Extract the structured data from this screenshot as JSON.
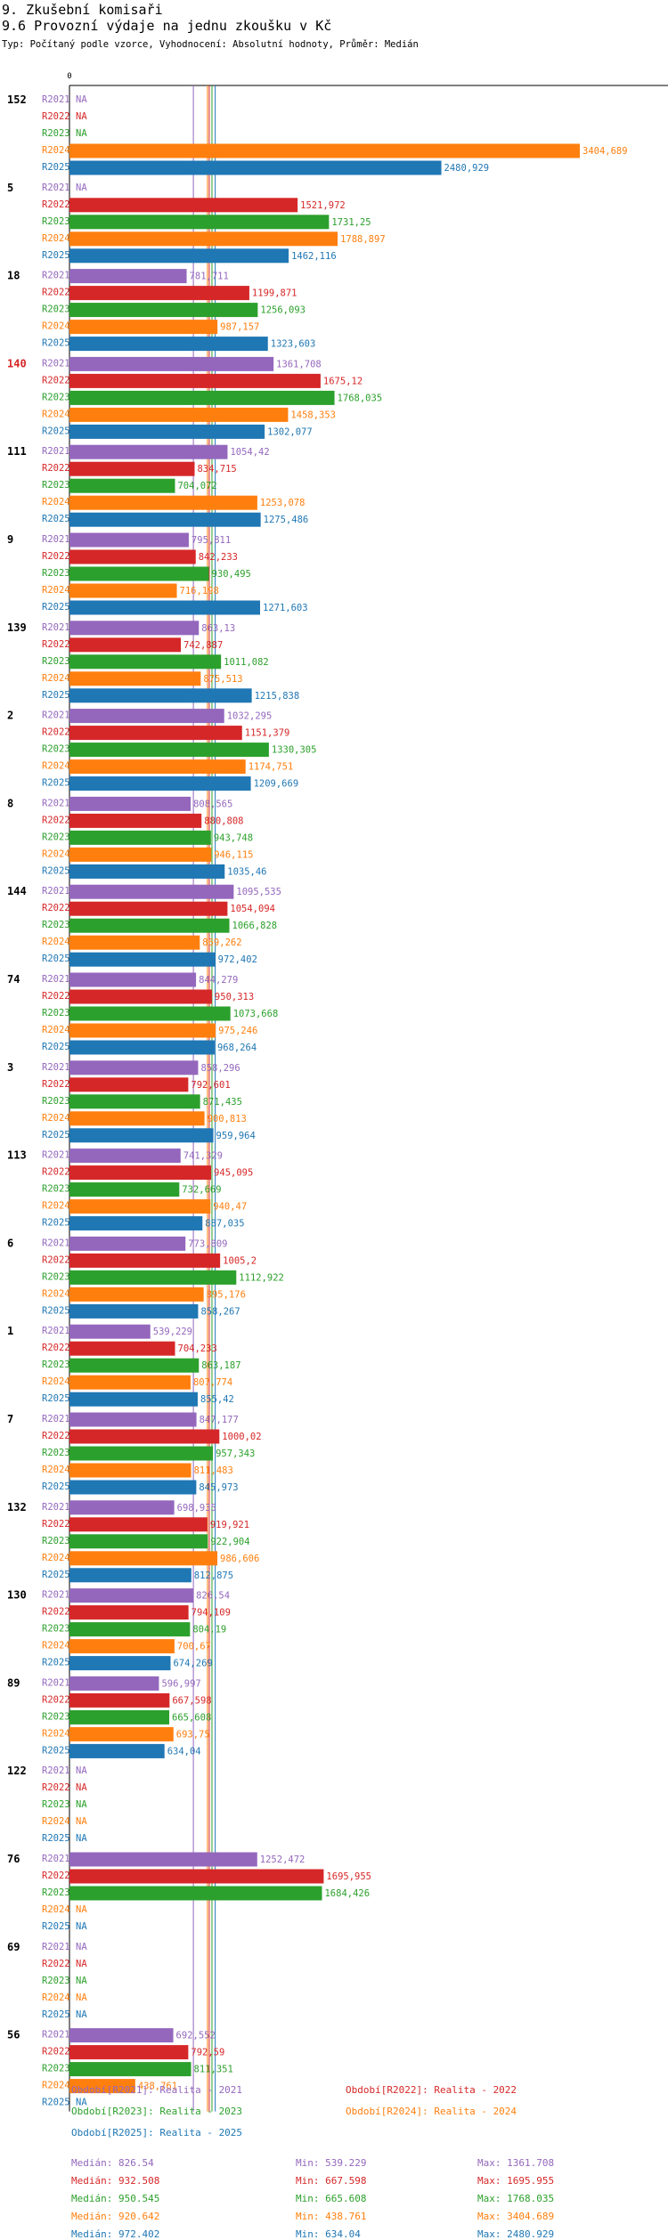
{
  "header": {
    "section": "9. Zkušební komisaři",
    "subtitle": "9.6 Provozní výdaje na jednu zkoušku v Kč",
    "type_line": "Typ: Počítaný podle vzorce, Vyhodnocení: Absolutní hodnoty, Průměr: Medián"
  },
  "chart_data": {
    "type": "bar",
    "orientation": "horizontal",
    "title": "9.6 Provozní výdaje na jednu zkoušku v Kč",
    "x_axis_start_label": "0",
    "na_label": "NA",
    "periods": [
      "R2021",
      "R2022",
      "R2023",
      "R2024",
      "R2025"
    ],
    "colors": {
      "R2021": "#9467bd",
      "R2022": "#d62728",
      "R2023": "#2ca02c",
      "R2024": "#ff7f0e",
      "R2025": "#1f77b4",
      "highlight_group": "#d62728"
    },
    "groups": [
      {
        "id": "152",
        "highlight": false,
        "values": [
          null,
          null,
          null,
          3404.689,
          2480.929
        ],
        "labels": [
          "NA",
          "NA",
          "NA",
          "3404,689",
          "2480,929"
        ]
      },
      {
        "id": "5",
        "highlight": false,
        "values": [
          null,
          1521.972,
          1731.25,
          1788.897,
          1462.116
        ],
        "labels": [
          "NA",
          "1521,972",
          "1731,25",
          "1788,897",
          "1462,116"
        ]
      },
      {
        "id": "18",
        "highlight": false,
        "values": [
          781.711,
          1199.871,
          1256.093,
          987.157,
          1323.603
        ],
        "labels": [
          "781,711",
          "1199,871",
          "1256,093",
          "987,157",
          "1323,603"
        ]
      },
      {
        "id": "140",
        "highlight": true,
        "values": [
          1361.708,
          1675.12,
          1768.035,
          1458.353,
          1302.077
        ],
        "labels": [
          "1361,708",
          "1675,12",
          "1768,035",
          "1458,353",
          "1302,077"
        ]
      },
      {
        "id": "111",
        "highlight": false,
        "values": [
          1054.42,
          834.715,
          704.072,
          1253.078,
          1275.486
        ],
        "labels": [
          "1054,42",
          "834,715",
          "704,072",
          "1253,078",
          "1275,486"
        ]
      },
      {
        "id": "9",
        "highlight": false,
        "values": [
          795.811,
          842.233,
          930.495,
          716.198,
          1271.603
        ],
        "labels": [
          "795,811",
          "842,233",
          "930,495",
          "716,198",
          "1271,603"
        ]
      },
      {
        "id": "139",
        "highlight": false,
        "values": [
          863.13,
          742.887,
          1011.082,
          875.513,
          1215.838
        ],
        "labels": [
          "863,13",
          "742,887",
          "1011,082",
          "875,513",
          "1215,838"
        ]
      },
      {
        "id": "2",
        "highlight": false,
        "values": [
          1032.295,
          1151.379,
          1330.305,
          1174.751,
          1209.669
        ],
        "labels": [
          "1032,295",
          "1151,379",
          "1330,305",
          "1174,751",
          "1209,669"
        ]
      },
      {
        "id": "8",
        "highlight": false,
        "values": [
          808.565,
          880.808,
          943.748,
          946.115,
          1035.46
        ],
        "labels": [
          "808,565",
          "880,808",
          "943,748",
          "946,115",
          "1035,46"
        ]
      },
      {
        "id": "144",
        "highlight": false,
        "values": [
          1095.535,
          1054.094,
          1066.828,
          869.262,
          972.402
        ],
        "labels": [
          "1095,535",
          "1054,094",
          "1066,828",
          "869,262",
          "972,402"
        ]
      },
      {
        "id": "74",
        "highlight": false,
        "values": [
          844.279,
          950.313,
          1073.668,
          975.246,
          968.264
        ],
        "labels": [
          "844,279",
          "950,313",
          "1073,668",
          "975,246",
          "968,264"
        ]
      },
      {
        "id": "3",
        "highlight": false,
        "values": [
          858.296,
          792.601,
          871.435,
          900.813,
          959.964
        ],
        "labels": [
          "858,296",
          "792,601",
          "871,435",
          "900,813",
          "959,964"
        ]
      },
      {
        "id": "113",
        "highlight": false,
        "values": [
          741.329,
          945.095,
          732.669,
          940.47,
          887.035
        ],
        "labels": [
          "741,329",
          "945,095",
          "732,669",
          "940,47",
          "887,035"
        ]
      },
      {
        "id": "6",
        "highlight": false,
        "values": [
          773.809,
          1005.2,
          1112.922,
          895.176,
          858.267
        ],
        "labels": [
          "773,809",
          "1005,2",
          "1112,922",
          "895,176",
          "858,267"
        ]
      },
      {
        "id": "1",
        "highlight": false,
        "values": [
          539.229,
          704.233,
          863.187,
          807.774,
          855.42
        ],
        "labels": [
          "539,229",
          "704,233",
          "863,187",
          "807,774",
          "855,42"
        ]
      },
      {
        "id": "7",
        "highlight": false,
        "values": [
          847.177,
          1000.02,
          957.343,
          811.483,
          845.973
        ],
        "labels": [
          "847,177",
          "1000,02",
          "957,343",
          "811,483",
          "845,973"
        ]
      },
      {
        "id": "132",
        "highlight": false,
        "values": [
          698.935,
          919.921,
          922.904,
          986.606,
          812.875
        ],
        "labels": [
          "698,935",
          "919,921",
          "922,904",
          "986,606",
          "812,875"
        ]
      },
      {
        "id": "130",
        "highlight": false,
        "values": [
          826.54,
          794.109,
          804.19,
          700.67,
          674.269
        ],
        "labels": [
          "826,54",
          "794,109",
          "804,19",
          "700,67",
          "674,269"
        ]
      },
      {
        "id": "89",
        "highlight": false,
        "values": [
          596.997,
          667.598,
          665.608,
          693.75,
          634.04
        ],
        "labels": [
          "596,997",
          "667,598",
          "665,608",
          "693,75",
          "634,04"
        ]
      },
      {
        "id": "122",
        "highlight": false,
        "values": [
          null,
          null,
          null,
          null,
          null
        ],
        "labels": [
          "NA",
          "NA",
          "NA",
          "NA",
          "NA"
        ]
      },
      {
        "id": "76",
        "highlight": false,
        "values": [
          1252.472,
          1695.955,
          1684.426,
          null,
          null
        ],
        "labels": [
          "1252,472",
          "1695,955",
          "1684,426",
          "NA",
          "NA"
        ]
      },
      {
        "id": "69",
        "highlight": false,
        "values": [
          null,
          null,
          null,
          null,
          null
        ],
        "labels": [
          "NA",
          "NA",
          "NA",
          "NA",
          "NA"
        ]
      },
      {
        "id": "56",
        "highlight": false,
        "values": [
          692.552,
          792.59,
          811.351,
          438.761,
          null
        ],
        "labels": [
          "692,552",
          "792,59",
          "811,351",
          "438,761",
          "NA"
        ]
      }
    ],
    "medians": [
      826.54,
      932.508,
      950.545,
      920.642,
      972.402
    ],
    "x_scale_max": 3404.689
  },
  "legend": {
    "periods": [
      {
        "text": "Období[R2021]: Realita - 2021",
        "color": "#9467bd"
      },
      {
        "text": "Období[R2022]: Realita - 2022",
        "color": "#d62728"
      },
      {
        "text": "Období[R2023]: Realita - 2023",
        "color": "#2ca02c"
      },
      {
        "text": "Období[R2024]: Realita - 2024",
        "color": "#ff7f0e"
      },
      {
        "text": "Období[R2025]: Realita - 2025",
        "color": "#1f77b4"
      }
    ],
    "stats": [
      {
        "median": "Medián: 826.54",
        "min": "Min: 539.229",
        "max": "Max: 1361.708",
        "color": "#9467bd"
      },
      {
        "median": "Medián: 932.508",
        "min": "Min: 667.598",
        "max": "Max: 1695.955",
        "color": "#d62728"
      },
      {
        "median": "Medián: 950.545",
        "min": "Min: 665.608",
        "max": "Max: 1768.035",
        "color": "#2ca02c"
      },
      {
        "median": "Medián: 920.642",
        "min": "Min: 438.761",
        "max": "Max: 3404.689",
        "color": "#ff7f0e"
      },
      {
        "median": "Medián: 972.402",
        "min": "Min: 634.04",
        "max": "Max: 2480.929",
        "color": "#1f77b4"
      }
    ]
  }
}
